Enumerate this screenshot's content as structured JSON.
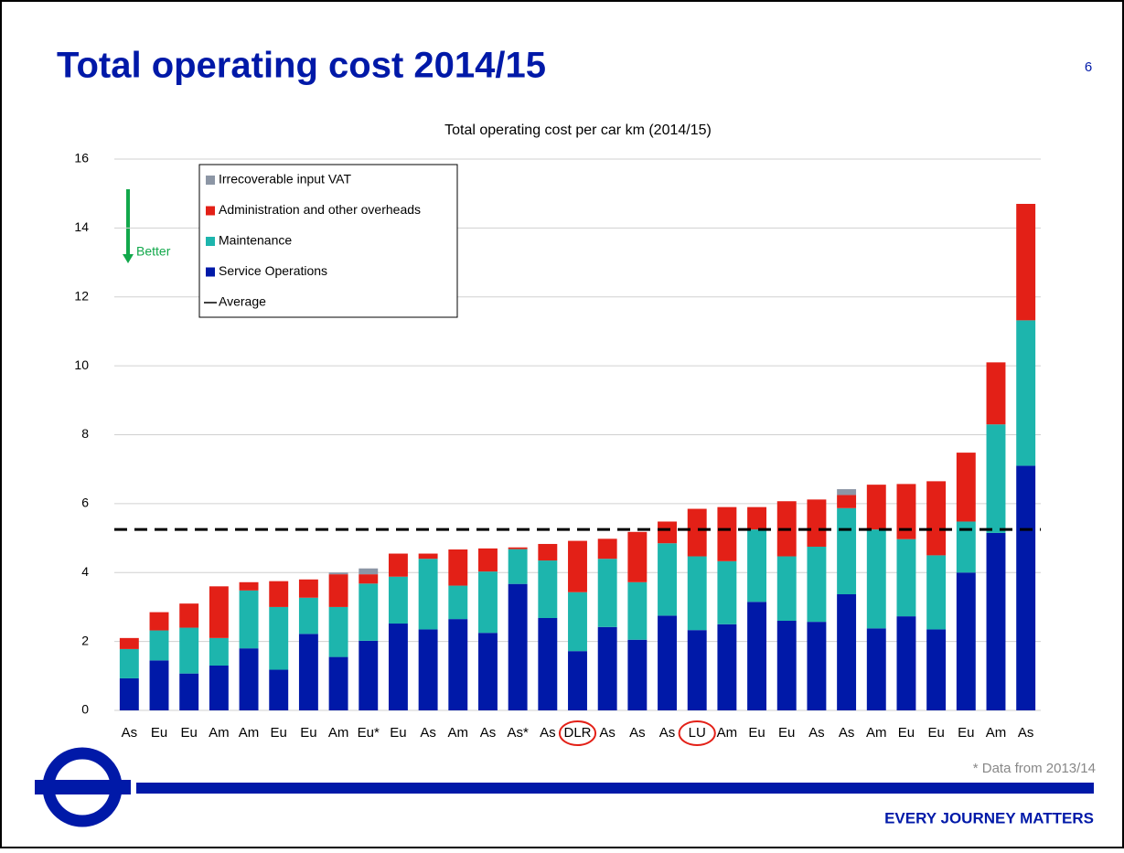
{
  "title": "Total operating cost 2014/15",
  "page_number": "6",
  "footnote": "* Data from 2013/14",
  "slogan": "EVERY JOURNEY MATTERS",
  "chart_data": {
    "type": "stacked_bar",
    "title": "Total operating cost per car km (2014/15)",
    "annotation": "Better",
    "categories": [
      "As",
      "Eu",
      "Eu",
      "Am",
      "Am",
      "Eu",
      "Eu",
      "Am",
      "Eu*",
      "Eu",
      "As",
      "Am",
      "As",
      "As*",
      "As",
      "DLR",
      "As",
      "As",
      "As",
      "LU",
      "Am",
      "Eu",
      "Eu",
      "As",
      "As",
      "Am",
      "Eu",
      "Eu",
      "Eu",
      "Am",
      "As"
    ],
    "highlighted": [
      "DLR",
      "LU"
    ],
    "highlight_color": "#e32017",
    "series": [
      {
        "name": "Service Operations",
        "color": "#0019a8",
        "values": [
          0.93,
          1.45,
          1.07,
          1.3,
          1.8,
          1.18,
          2.22,
          1.55,
          2.02,
          2.52,
          2.35,
          2.65,
          2.25,
          3.67,
          2.68,
          1.72,
          2.42,
          2.05,
          2.75,
          2.33,
          2.5,
          3.15,
          2.6,
          2.57,
          3.37,
          2.38,
          2.73,
          2.35,
          4.0,
          5.15,
          7.1
        ]
      },
      {
        "name": "Maintenance",
        "color": "#1db5ad",
        "values": [
          0.85,
          0.87,
          1.33,
          0.8,
          1.68,
          1.82,
          1.05,
          1.45,
          1.66,
          1.36,
          2.05,
          0.97,
          1.78,
          1.01,
          1.67,
          1.71,
          1.98,
          1.67,
          2.1,
          2.14,
          1.83,
          2.1,
          1.87,
          2.18,
          2.5,
          2.87,
          2.24,
          2.15,
          1.48,
          3.15,
          4.22
        ]
      },
      {
        "name": "Administration and other overheads",
        "color": "#e32017",
        "values": [
          0.32,
          0.53,
          0.7,
          1.5,
          0.24,
          0.75,
          0.53,
          0.95,
          0.27,
          0.67,
          0.15,
          1.05,
          0.67,
          0.05,
          0.48,
          1.49,
          0.58,
          1.46,
          0.63,
          1.38,
          1.57,
          0.65,
          1.6,
          1.37,
          0.38,
          1.3,
          1.6,
          2.15,
          2.0,
          1.8,
          3.38
        ]
      },
      {
        "name": "Irrecoverable input VAT",
        "color": "#8c96a5",
        "values": [
          0,
          0,
          0,
          0,
          0,
          0,
          0,
          0.05,
          0.17,
          0,
          0,
          0,
          0,
          0,
          0,
          0,
          0,
          0,
          0,
          0,
          0,
          0,
          0,
          0,
          0.17,
          0,
          0,
          0,
          0,
          0,
          0
        ]
      }
    ],
    "average": {
      "name": "Average",
      "value": 5.25,
      "color": "#000000"
    },
    "ylim": [
      0,
      16
    ],
    "yticks": [
      0,
      2,
      4,
      6,
      8,
      10,
      12,
      14,
      16
    ],
    "grid": true
  }
}
